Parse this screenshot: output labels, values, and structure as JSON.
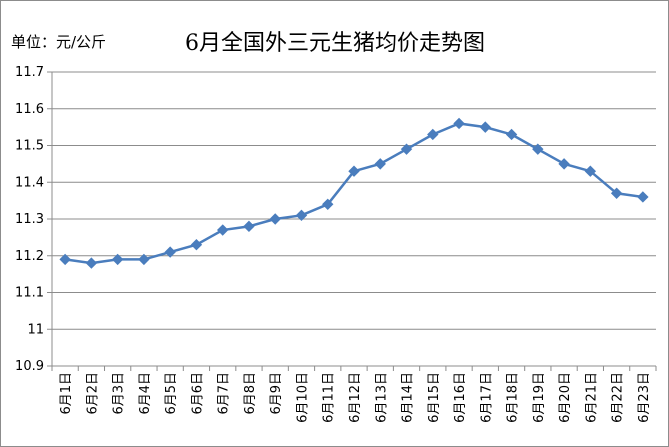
{
  "chart_data": {
    "type": "line",
    "title": "6月全国外三元生猪均价走势图",
    "unit_label": "单位：元/公斤",
    "categories": [
      "6月1日",
      "6月2日",
      "6月3日",
      "6月4日",
      "6月5日",
      "6月6日",
      "6月7日",
      "6月8日",
      "6月9日",
      "6月10日",
      "6月11日",
      "6月12日",
      "6月13日",
      "6月14日",
      "6月15日",
      "6月16日",
      "6月17日",
      "6月18日",
      "6月19日",
      "6月20日",
      "6月21日",
      "6月22日",
      "6月23日"
    ],
    "values": [
      11.19,
      11.18,
      11.19,
      11.19,
      11.21,
      11.23,
      11.27,
      11.28,
      11.3,
      11.31,
      11.34,
      11.43,
      11.45,
      11.49,
      11.53,
      11.56,
      11.55,
      11.53,
      11.49,
      11.45,
      11.43,
      11.37,
      11.36
    ],
    "yticks": [
      "10.9",
      "11",
      "11.1",
      "11.2",
      "11.3",
      "11.4",
      "11.5",
      "11.6",
      "11.7"
    ],
    "ylim": [
      10.9,
      11.7
    ],
    "grid": true,
    "legend": "none",
    "colors": {
      "line": "#4a7dbd",
      "grid": "#8c8c8c"
    }
  }
}
